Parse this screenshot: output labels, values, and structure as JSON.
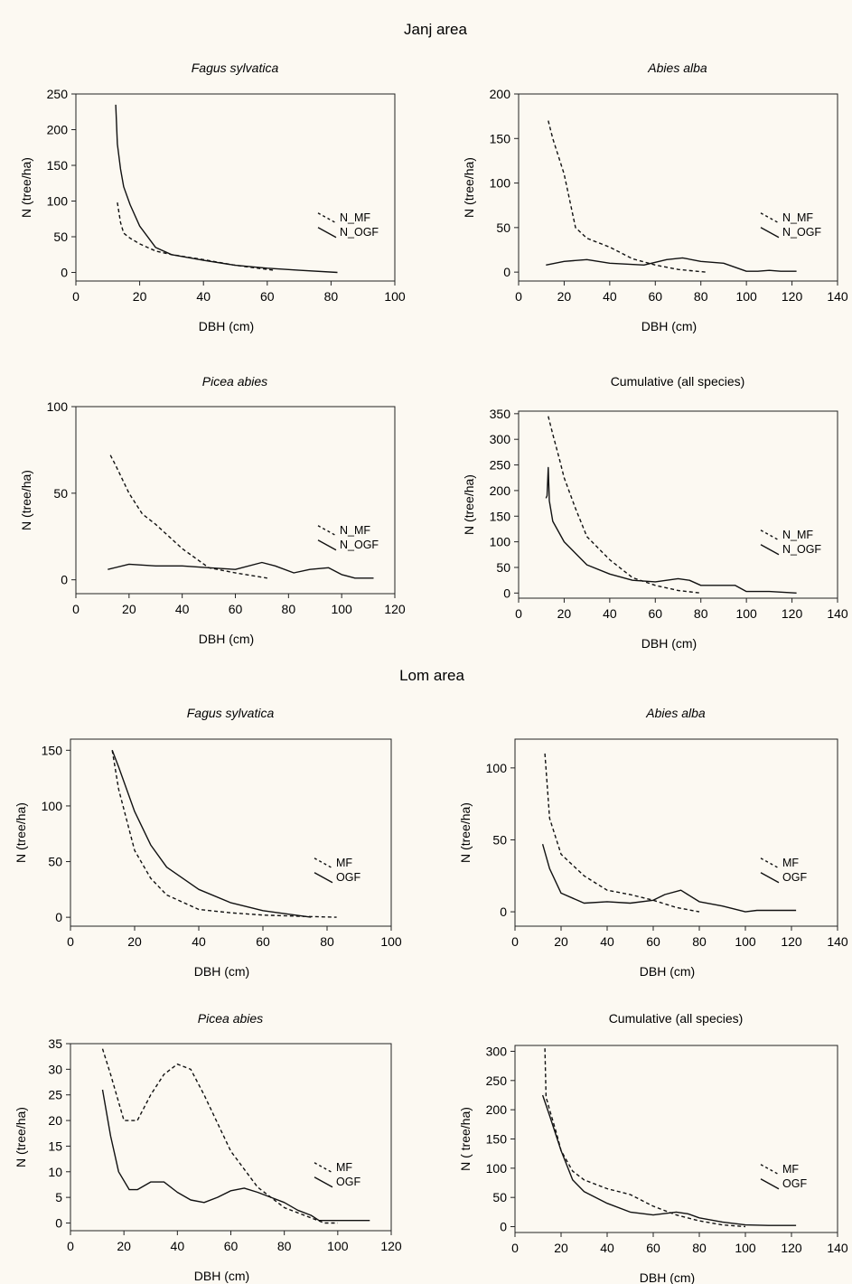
{
  "figure": {
    "sections": [
      {
        "title": "Janj area"
      },
      {
        "title": "Lom area"
      }
    ]
  },
  "chart_data": [
    {
      "type": "line",
      "section": "Janj area",
      "title": "Fagus sylvatica",
      "title_italic": true,
      "xlabel": "DBH (cm)",
      "ylabel": "N (tree/ha)",
      "xlim": [
        0,
        100
      ],
      "ylim": [
        -12,
        250
      ],
      "xticks": [
        0,
        20,
        40,
        60,
        80,
        100
      ],
      "yticks": [
        0,
        50,
        100,
        150,
        200,
        250
      ],
      "legend_position": "right",
      "series": [
        {
          "name": "N_MF",
          "style": "dashed",
          "x": [
            13,
            14,
            15,
            17,
            20,
            25,
            30,
            40,
            50,
            62
          ],
          "y": [
            98,
            70,
            55,
            48,
            40,
            30,
            25,
            18,
            10,
            3
          ]
        },
        {
          "name": "N_OGF",
          "style": "solid",
          "x": [
            12.5,
            13,
            14,
            15,
            17,
            20,
            25,
            30,
            40,
            50,
            60,
            70,
            82
          ],
          "y": [
            235,
            180,
            145,
            120,
            95,
            65,
            35,
            25,
            17,
            10,
            6,
            3,
            0
          ]
        }
      ]
    },
    {
      "type": "line",
      "section": "Janj area",
      "title": "Abies alba",
      "title_italic": true,
      "xlabel": "DBH (cm)",
      "ylabel": "N (tree/ha)",
      "xlim": [
        0,
        140
      ],
      "ylim": [
        -10,
        200
      ],
      "xticks": [
        0,
        20,
        40,
        60,
        80,
        100,
        120,
        140
      ],
      "yticks": [
        0,
        50,
        100,
        150,
        200
      ],
      "legend_position": "right",
      "series": [
        {
          "name": "N_MF",
          "style": "dashed",
          "x": [
            13,
            15,
            20,
            25,
            30,
            40,
            50,
            60,
            70,
            82
          ],
          "y": [
            170,
            150,
            110,
            50,
            38,
            28,
            15,
            8,
            3,
            0
          ]
        },
        {
          "name": "N_OGF",
          "style": "solid",
          "x": [
            12,
            20,
            30,
            40,
            55,
            65,
            72,
            80,
            90,
            100,
            105,
            110,
            115,
            122
          ],
          "y": [
            8,
            12,
            14,
            10,
            8,
            14,
            16,
            12,
            10,
            1,
            1,
            2,
            1,
            1
          ]
        }
      ]
    },
    {
      "type": "line",
      "section": "Janj area",
      "title": "Picea abies",
      "title_italic": true,
      "xlabel": "DBH (cm)",
      "ylabel": "N (tree/ha)",
      "xlim": [
        0,
        120
      ],
      "ylim": [
        -8,
        100
      ],
      "xticks": [
        0,
        20,
        40,
        60,
        80,
        100,
        120
      ],
      "yticks": [
        0,
        50,
        100
      ],
      "legend_position": "right",
      "series": [
        {
          "name": "N_MF",
          "style": "dashed",
          "x": [
            13,
            15,
            20,
            25,
            30,
            40,
            50,
            60,
            72
          ],
          "y": [
            72,
            66,
            50,
            38,
            32,
            18,
            7,
            4,
            1
          ]
        },
        {
          "name": "N_OGF",
          "style": "solid",
          "x": [
            12,
            20,
            30,
            40,
            50,
            60,
            70,
            75,
            82,
            88,
            95,
            100,
            105,
            112
          ],
          "y": [
            6,
            9,
            8,
            8,
            7,
            6,
            10,
            8,
            4,
            6,
            7,
            3,
            1,
            1
          ]
        }
      ]
    },
    {
      "type": "line",
      "section": "Janj area",
      "title": "Cumulative (all species)",
      "title_italic": false,
      "xlabel": "DBH (cm)",
      "ylabel": "N (tree/ha)",
      "xlim": [
        0,
        140
      ],
      "ylim": [
        -10,
        355
      ],
      "xticks": [
        0,
        20,
        40,
        60,
        80,
        100,
        120,
        140
      ],
      "yticks": [
        0,
        50,
        100,
        150,
        200,
        250,
        300,
        350
      ],
      "legend_position": "right",
      "series": [
        {
          "name": "N_MF",
          "style": "dashed",
          "x": [
            13,
            15,
            18,
            20,
            25,
            30,
            40,
            50,
            60,
            70,
            80
          ],
          "y": [
            345,
            310,
            260,
            225,
            165,
            110,
            65,
            30,
            15,
            5,
            0
          ]
        },
        {
          "name": "N_OGF",
          "style": "solid",
          "x": [
            12,
            12.5,
            13,
            13.5,
            15,
            20,
            30,
            40,
            50,
            60,
            70,
            75,
            80,
            95,
            100,
            110,
            122
          ],
          "y": [
            185,
            190,
            245,
            180,
            140,
            100,
            55,
            37,
            25,
            22,
            28,
            25,
            15,
            15,
            3,
            3,
            0
          ]
        }
      ]
    },
    {
      "type": "line",
      "section": "Lom area",
      "title": "Fagus sylvatica",
      "title_italic": true,
      "xlabel": "DBH (cm)",
      "ylabel": "N (tree/ha)",
      "xlim": [
        0,
        100
      ],
      "ylim": [
        -8,
        160
      ],
      "xticks": [
        0,
        20,
        40,
        60,
        80,
        100
      ],
      "yticks": [
        0,
        50,
        100,
        150
      ],
      "legend_position": "right",
      "series": [
        {
          "name": "MF",
          "style": "dashed",
          "x": [
            13,
            15,
            20,
            25,
            30,
            40,
            50,
            60,
            70,
            83
          ],
          "y": [
            150,
            115,
            60,
            35,
            20,
            7,
            4,
            2,
            1,
            0
          ]
        },
        {
          "name": "OGF",
          "style": "solid",
          "x": [
            13,
            15,
            20,
            25,
            30,
            40,
            50,
            60,
            70,
            75
          ],
          "y": [
            150,
            135,
            95,
            65,
            45,
            25,
            13,
            6,
            2,
            0
          ]
        }
      ]
    },
    {
      "type": "line",
      "section": "Lom area",
      "title": "Abies alba",
      "title_italic": true,
      "xlabel": "DBH (cm)",
      "ylabel": "N (tree/ha)",
      "xlim": [
        0,
        140
      ],
      "ylim": [
        -10,
        120
      ],
      "xticks": [
        0,
        20,
        40,
        60,
        80,
        100,
        120,
        140
      ],
      "yticks": [
        0,
        50,
        100
      ],
      "legend_position": "right",
      "series": [
        {
          "name": "MF",
          "style": "dashed",
          "x": [
            13,
            15,
            20,
            30,
            40,
            50,
            60,
            70,
            80
          ],
          "y": [
            110,
            65,
            40,
            25,
            15,
            12,
            8,
            3,
            0
          ]
        },
        {
          "name": "OGF",
          "style": "solid",
          "x": [
            12,
            15,
            20,
            30,
            40,
            50,
            60,
            65,
            72,
            75,
            80,
            90,
            100,
            105,
            122
          ],
          "y": [
            47,
            30,
            13,
            6,
            7,
            6,
            8,
            12,
            15,
            12,
            7,
            4,
            0,
            1,
            1
          ]
        }
      ]
    },
    {
      "type": "line",
      "section": "Lom area",
      "title": "Picea abies",
      "title_italic": true,
      "xlabel": "DBH (cm)",
      "ylabel": "N (tree/ha)",
      "xlim": [
        0,
        120
      ],
      "ylim": [
        -1.5,
        35
      ],
      "xticks": [
        0,
        20,
        40,
        60,
        80,
        100,
        120
      ],
      "yticks": [
        0,
        5,
        10,
        15,
        20,
        25,
        30,
        35
      ],
      "legend_position": "right",
      "series": [
        {
          "name": "MF",
          "style": "dashed",
          "x": [
            12,
            15,
            20,
            25,
            30,
            35,
            40,
            45,
            50,
            60,
            70,
            80,
            90,
            95,
            100
          ],
          "y": [
            34,
            29,
            20,
            20,
            25,
            29,
            31,
            30,
            25,
            14,
            7,
            3,
            1,
            0,
            0
          ]
        },
        {
          "name": "OGF",
          "style": "solid",
          "x": [
            12,
            15,
            18,
            22,
            25,
            30,
            35,
            40,
            45,
            50,
            55,
            60,
            65,
            70,
            75,
            80,
            85,
            90,
            93,
            100,
            112
          ],
          "y": [
            26,
            17,
            10,
            6.5,
            6.5,
            8,
            8,
            6,
            4.5,
            4,
            5,
            6.3,
            6.8,
            6,
            5,
            4,
            2.5,
            1.5,
            0.5,
            0.5,
            0.5
          ]
        }
      ]
    },
    {
      "type": "line",
      "section": "Lom area",
      "title": "Cumulative (all species)",
      "title_italic": false,
      "xlabel": "DBH (cm)",
      "ylabel": "N ( tree/ha)",
      "xlim": [
        0,
        140
      ],
      "ylim": [
        -10,
        310
      ],
      "xticks": [
        0,
        20,
        40,
        60,
        80,
        100,
        120,
        140
      ],
      "yticks": [
        0,
        50,
        100,
        150,
        200,
        250,
        300
      ],
      "legend_position": "right",
      "series": [
        {
          "name": "MF",
          "style": "dashed",
          "x": [
            13,
            13.5,
            14,
            15,
            18,
            20,
            25,
            30,
            40,
            50,
            60,
            70,
            80,
            90,
            100
          ],
          "y": [
            305,
            220,
            215,
            200,
            160,
            130,
            95,
            80,
            65,
            55,
            35,
            20,
            10,
            3,
            0
          ]
        },
        {
          "name": "OGF",
          "style": "solid",
          "x": [
            12,
            15,
            20,
            25,
            30,
            40,
            50,
            60,
            70,
            75,
            80,
            90,
            100,
            110,
            122
          ],
          "y": [
            225,
            190,
            130,
            80,
            60,
            40,
            25,
            20,
            25,
            22,
            15,
            8,
            3,
            2,
            2
          ]
        }
      ]
    }
  ]
}
